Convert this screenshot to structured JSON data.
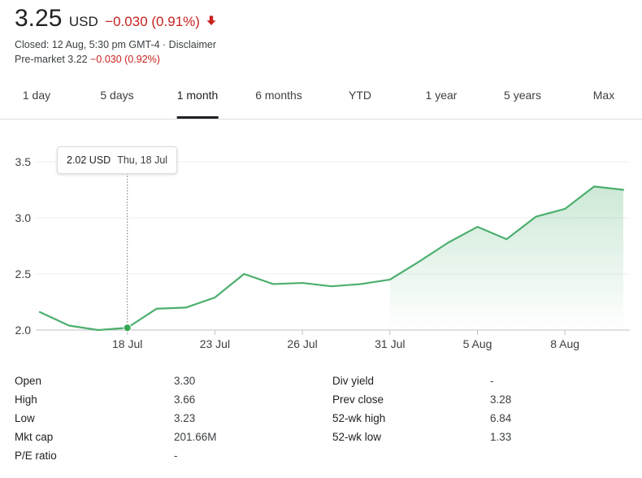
{
  "quote": {
    "price": "3.25",
    "currency": "USD",
    "change": "−0.030 (0.91%)",
    "closed_text": "Closed: 12 Aug, 5:30 pm GMT-4 · Disclaimer",
    "premarket_label": "Pre-market 3.22",
    "premarket_change": "−0.030 (0.92%)"
  },
  "colors": {
    "negative": "#c5221f",
    "line": "#4caf6e",
    "fill": "#4caf6e"
  },
  "tabs": [
    {
      "label": "1 day"
    },
    {
      "label": "5 days"
    },
    {
      "label": "1 month",
      "active": true
    },
    {
      "label": "6 months"
    },
    {
      "label": "YTD"
    },
    {
      "label": "1 year"
    },
    {
      "label": "5 years"
    },
    {
      "label": "Max"
    }
  ],
  "tooltip": {
    "value": "2.02 USD",
    "date": "Thu, 18 Jul"
  },
  "chart_data": {
    "type": "area",
    "ylim": [
      1.97,
      3.68
    ],
    "xlim": [
      0,
      20.6
    ],
    "yticks": [
      {
        "v": 2.0,
        "label": "2.0"
      },
      {
        "v": 2.5,
        "label": "2.5"
      },
      {
        "v": 3.0,
        "label": "3.0"
      },
      {
        "v": 3.5,
        "label": "3.5"
      }
    ],
    "xticks": [
      {
        "x": 3,
        "label": "18 Jul"
      },
      {
        "x": 6,
        "label": "23 Jul"
      },
      {
        "x": 9,
        "label": "26 Jul"
      },
      {
        "x": 12,
        "label": "31 Jul"
      },
      {
        "x": 15,
        "label": "5 Aug"
      },
      {
        "x": 18,
        "label": "8 Aug"
      }
    ],
    "series": [
      {
        "points": [
          {
            "x": 0,
            "y": 2.16
          },
          {
            "x": 1,
            "y": 2.04
          },
          {
            "x": 2,
            "y": 2.0
          },
          {
            "x": 3,
            "y": 2.02
          },
          {
            "x": 4,
            "y": 2.19
          },
          {
            "x": 5,
            "y": 2.2
          },
          {
            "x": 6,
            "y": 2.29
          },
          {
            "x": 7,
            "y": 2.5
          },
          {
            "x": 8,
            "y": 2.41
          },
          {
            "x": 9,
            "y": 2.42
          },
          {
            "x": 10,
            "y": 2.39
          },
          {
            "x": 11,
            "y": 2.41
          },
          {
            "x": 12,
            "y": 2.45
          },
          {
            "x": 13,
            "y": 2.61
          },
          {
            "x": 14,
            "y": 2.78
          },
          {
            "x": 15,
            "y": 2.92
          },
          {
            "x": 16,
            "y": 2.81
          },
          {
            "x": 17,
            "y": 3.01
          },
          {
            "x": 18,
            "y": 3.08
          },
          {
            "x": 19,
            "y": 3.28
          },
          {
            "x": 20,
            "y": 3.25
          }
        ]
      }
    ],
    "marker_x": 3,
    "fill_from_x": 12,
    "grid": true
  },
  "stats": {
    "left": [
      {
        "label": "Open",
        "value": "3.30"
      },
      {
        "label": "High",
        "value": "3.66"
      },
      {
        "label": "Low",
        "value": "3.23"
      },
      {
        "label": "Mkt cap",
        "value": "201.66M"
      },
      {
        "label": "P/E ratio",
        "value": "-"
      }
    ],
    "right": [
      {
        "label": "Div yield",
        "value": "-"
      },
      {
        "label": "Prev close",
        "value": "3.28"
      },
      {
        "label": "52-wk high",
        "value": "6.84"
      },
      {
        "label": "52-wk low",
        "value": "1.33"
      }
    ]
  }
}
